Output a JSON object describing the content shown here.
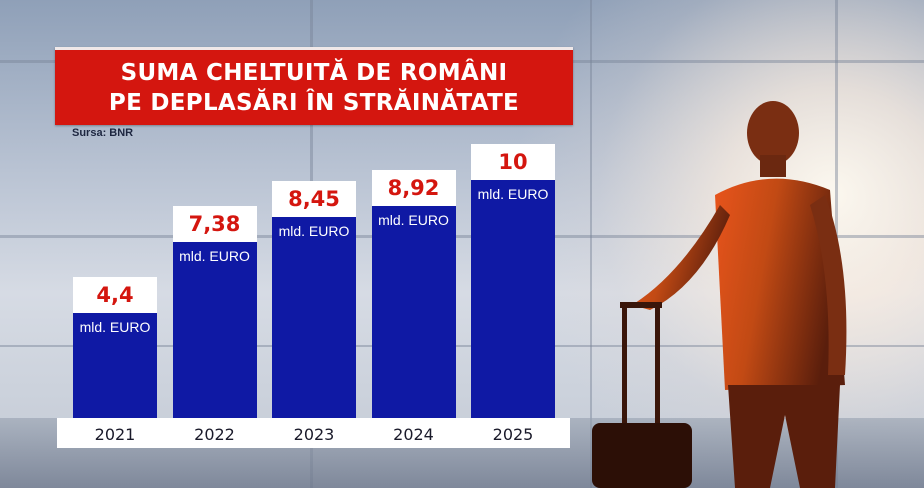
{
  "title": {
    "line1": "SUMA CHELTUITĂ DE ROMÂNI",
    "line2": "PE DEPLASĂRI ÎN STRĂINĂTATE"
  },
  "source": "Sursa: BNR",
  "colors": {
    "bar": "#0f19a4",
    "title_bg": "#d4160f",
    "value_text": "#d4160f"
  },
  "chart_data": {
    "type": "bar",
    "title": "SUMA CHELTUITĂ DE ROMÂNI PE DEPLASĂRI ÎN STRĂINĂTATE",
    "categories": [
      "2021",
      "2022",
      "2023",
      "2024",
      "2025"
    ],
    "values": [
      4.4,
      7.38,
      8.45,
      8.92,
      10
    ],
    "value_labels": [
      "4,4",
      "7,38",
      "8,45",
      "8,92",
      "10"
    ],
    "unit_label": "mld. EURO",
    "ylim": [
      0,
      10
    ],
    "grid": false,
    "legend": "none"
  }
}
